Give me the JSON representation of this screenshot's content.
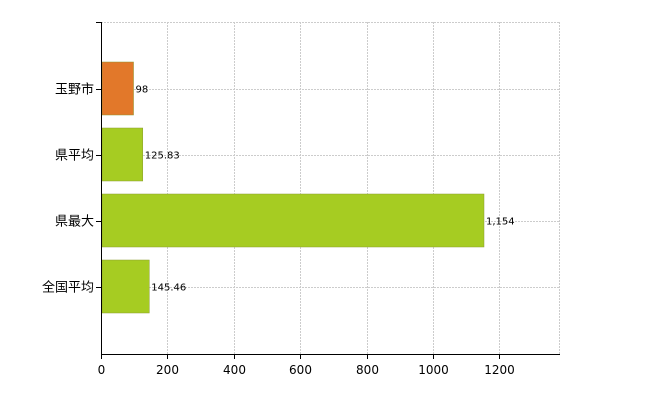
{
  "chart_data": {
    "type": "bar",
    "orientation": "horizontal",
    "categories": [
      "玉野市",
      "県平均",
      "県最大",
      "全国平均"
    ],
    "values": [
      98,
      125.83,
      1154,
      145.46
    ],
    "value_labels": [
      "98",
      "125.83",
      "1,154",
      "145.46"
    ],
    "bar_colors": [
      "#e2782a",
      "#a6cc22",
      "#a6cc22",
      "#a6cc22"
    ],
    "xlim": [
      0,
      1380
    ],
    "x_ticks": [
      0,
      200,
      400,
      600,
      800,
      1000,
      1200
    ],
    "x_tick_labels": [
      "0",
      "200",
      "400",
      "600",
      "800",
      "1000",
      "1200"
    ],
    "grid": true,
    "grid_color": "#cccccc",
    "title": "",
    "xlabel": "",
    "ylabel": ""
  }
}
